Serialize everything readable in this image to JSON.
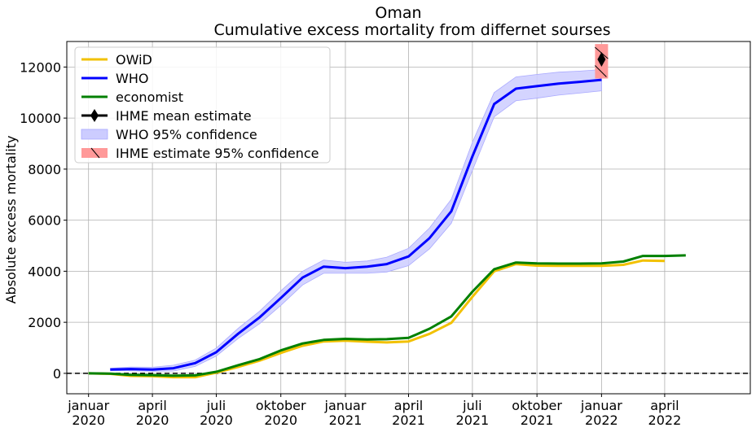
{
  "chart_data": {
    "type": "line",
    "title": "Oman",
    "subtitle": "Cumulative excess mortality from differnet sourses",
    "xlabel": "",
    "ylabel": "Absolute excess mortality",
    "ylim": [
      -800,
      13000
    ],
    "xlim": [
      "2019-12-01",
      "2022-08-01"
    ],
    "grid": true,
    "legend_position": "top-left",
    "x_ticks": [
      {
        "date": "2020-01-01",
        "line1": "januar",
        "line2": "2020"
      },
      {
        "date": "2020-04-01",
        "line1": "april",
        "line2": "2020"
      },
      {
        "date": "2020-07-01",
        "line1": "juli",
        "line2": "2020"
      },
      {
        "date": "2020-10-01",
        "line1": "oktober",
        "line2": "2020"
      },
      {
        "date": "2021-01-01",
        "line1": "januar",
        "line2": "2021"
      },
      {
        "date": "2021-04-01",
        "line1": "april",
        "line2": "2021"
      },
      {
        "date": "2021-07-01",
        "line1": "juli",
        "line2": "2021"
      },
      {
        "date": "2021-10-01",
        "line1": "oktober",
        "line2": "2021"
      },
      {
        "date": "2022-01-01",
        "line1": "januar",
        "line2": "2022"
      },
      {
        "date": "2022-04-01",
        "line1": "april",
        "line2": "2022"
      }
    ],
    "y_ticks": [
      0,
      2000,
      4000,
      6000,
      8000,
      10000,
      12000
    ],
    "zero_line": {
      "y": 0,
      "style": "dashed",
      "color": "#000000"
    },
    "series": [
      {
        "name": "OWiD",
        "color": "#f2c100",
        "x": [
          "2020-01-01",
          "2020-02-01",
          "2020-03-01",
          "2020-04-01",
          "2020-05-01",
          "2020-06-01",
          "2020-07-01",
          "2020-08-01",
          "2020-09-01",
          "2020-10-01",
          "2020-11-01",
          "2020-12-01",
          "2021-01-01",
          "2021-02-01",
          "2021-03-01",
          "2021-04-01",
          "2021-05-01",
          "2021-06-01",
          "2021-07-01",
          "2021-08-01",
          "2021-09-01",
          "2021-10-01",
          "2021-11-01",
          "2021-12-01",
          "2022-01-01",
          "2022-02-01",
          "2022-03-01",
          "2022-04-01"
        ],
        "values": [
          0,
          -20,
          -100,
          -110,
          -150,
          -150,
          30,
          250,
          500,
          800,
          1080,
          1250,
          1280,
          1240,
          1210,
          1250,
          1550,
          1980,
          3000,
          4000,
          4280,
          4220,
          4210,
          4210,
          4210,
          4250,
          4420,
          4400
        ]
      },
      {
        "name": "WHO",
        "color": "#0000ff",
        "x": [
          "2020-02-01",
          "2020-03-01",
          "2020-04-01",
          "2020-05-01",
          "2020-06-01",
          "2020-07-01",
          "2020-08-01",
          "2020-09-01",
          "2020-10-01",
          "2020-11-01",
          "2020-12-01",
          "2021-01-01",
          "2021-02-01",
          "2021-03-01",
          "2021-04-01",
          "2021-05-01",
          "2021-06-01",
          "2021-07-01",
          "2021-08-01",
          "2021-09-01",
          "2021-10-01",
          "2021-11-01",
          "2021-12-01",
          "2022-01-01"
        ],
        "values": [
          150,
          170,
          150,
          200,
          400,
          830,
          1550,
          2200,
          2950,
          3750,
          4180,
          4120,
          4180,
          4280,
          4580,
          5300,
          6350,
          8500,
          10550,
          11150,
          11250,
          11350,
          11420,
          11500
        ],
        "lower": [
          110,
          100,
          80,
          90,
          270,
          680,
          1360,
          1950,
          2660,
          3460,
          3920,
          3920,
          3920,
          3970,
          4220,
          4880,
          5880,
          7950,
          10050,
          10680,
          10780,
          10900,
          10980,
          11070
        ],
        "upper": [
          200,
          250,
          240,
          320,
          520,
          990,
          1760,
          2440,
          3230,
          4000,
          4440,
          4350,
          4400,
          4550,
          4900,
          5700,
          6820,
          9050,
          11000,
          11610,
          11710,
          11800,
          11840,
          11900
        ]
      },
      {
        "name": "economist",
        "color": "#008000",
        "x": [
          "2020-01-01",
          "2020-02-01",
          "2020-03-01",
          "2020-04-01",
          "2020-05-01",
          "2020-06-01",
          "2020-07-01",
          "2020-08-01",
          "2020-09-01",
          "2020-10-01",
          "2020-11-01",
          "2020-12-01",
          "2021-01-01",
          "2021-02-01",
          "2021-03-01",
          "2021-04-01",
          "2021-05-01",
          "2021-06-01",
          "2021-07-01",
          "2021-08-01",
          "2021-09-01",
          "2021-10-01",
          "2021-11-01",
          "2021-12-01",
          "2022-01-01",
          "2022-02-01",
          "2022-03-01",
          "2022-04-01",
          "2022-05-01"
        ],
        "values": [
          0,
          -10,
          -60,
          -70,
          -90,
          -80,
          60,
          320,
          560,
          900,
          1170,
          1310,
          1350,
          1330,
          1340,
          1390,
          1750,
          2230,
          3200,
          4080,
          4340,
          4310,
          4300,
          4300,
          4310,
          4380,
          4600,
          4600,
          4620
        ]
      }
    ],
    "ihme": {
      "mean_label": "IHME mean estimate",
      "ci_label": " IHME estimate 95% confidence",
      "date": "2022-01-01",
      "mean": 12300,
      "lower": 11550,
      "upper": 12900,
      "color": "#000000",
      "ci_color": "#ff9999"
    },
    "who_ci_label": "WHO 95% confidence",
    "who_ci_color": "#ccccff"
  }
}
